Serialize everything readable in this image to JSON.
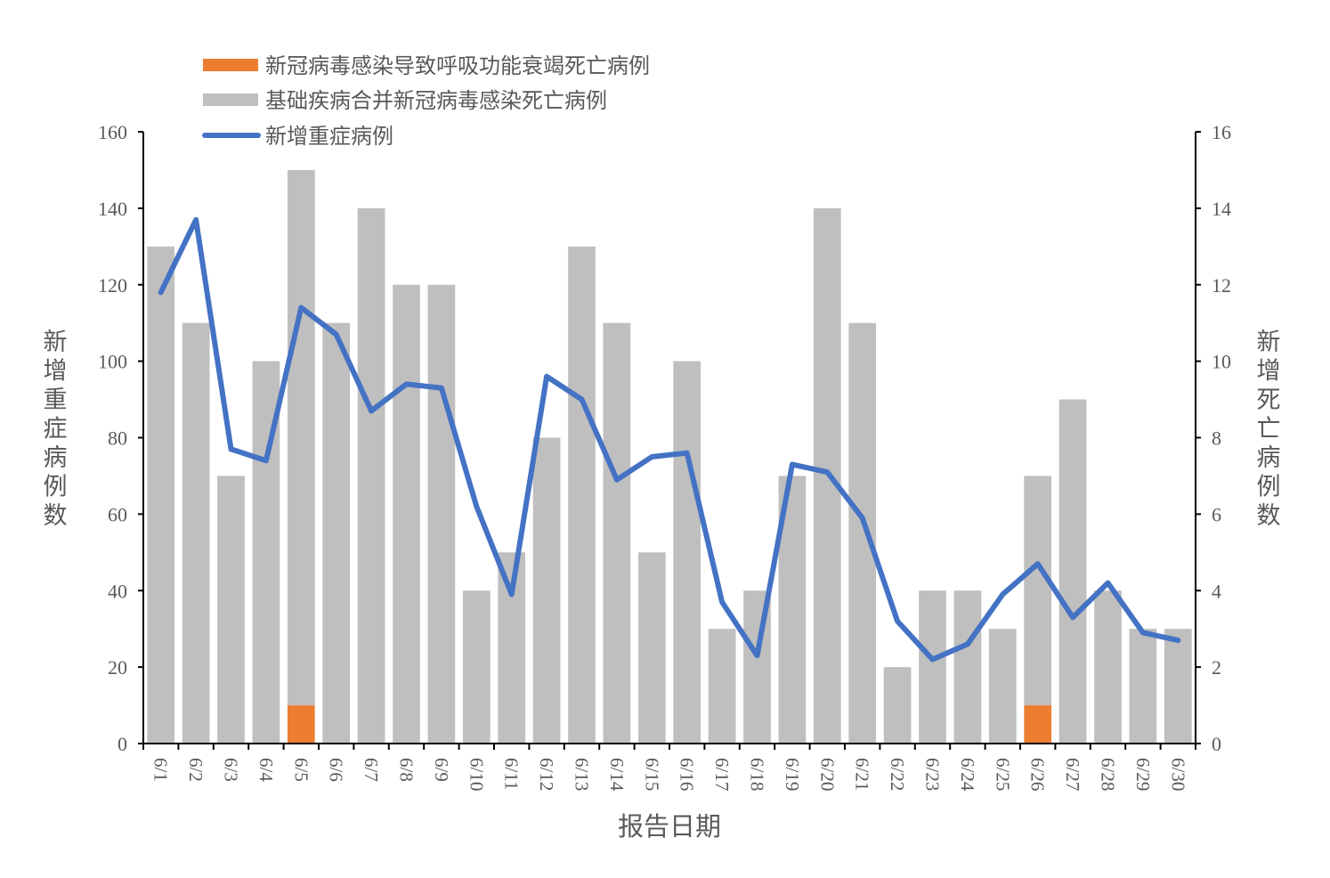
{
  "chart_data": {
    "type": "bar",
    "title": "",
    "xlabel": "报告日期",
    "ylabel": "新增重症病例数",
    "y2label": "新增死亡病例数",
    "ylim": [
      0,
      160
    ],
    "y2lim": [
      0,
      16
    ],
    "yticks": [
      0,
      20,
      40,
      60,
      80,
      100,
      120,
      140,
      160
    ],
    "y2ticks": [
      0,
      2,
      4,
      6,
      8,
      10,
      12,
      14,
      16
    ],
    "grid": false,
    "legend_position": "top-left",
    "categories": [
      "6/1",
      "6/2",
      "6/3",
      "6/4",
      "6/5",
      "6/6",
      "6/7",
      "6/8",
      "6/9",
      "6/10",
      "6/11",
      "6/12",
      "6/13",
      "6/14",
      "6/15",
      "6/16",
      "6/17",
      "6/18",
      "6/19",
      "6/20",
      "6/21",
      "6/22",
      "6/23",
      "6/24",
      "6/25",
      "6/26",
      "6/27",
      "6/28",
      "6/29",
      "6/30"
    ],
    "series": [
      {
        "name": "新冠病毒感染导致呼吸功能衰竭死亡病例",
        "type": "stacked-bar",
        "axis": "right",
        "color": "#ED7D31",
        "values": [
          0,
          0,
          0,
          0,
          1,
          0,
          0,
          0,
          0,
          0,
          0,
          0,
          0,
          0,
          0,
          0,
          0,
          0,
          0,
          0,
          0,
          0,
          0,
          0,
          0,
          1,
          0,
          0,
          0,
          0
        ]
      },
      {
        "name": "基础疾病合并新冠病毒感染死亡病例",
        "type": "stacked-bar",
        "axis": "right",
        "color": "#BFBFBF",
        "values": [
          13,
          11,
          7,
          10,
          14,
          11,
          14,
          12,
          12,
          4,
          5,
          8,
          13,
          11,
          5,
          10,
          3,
          4,
          7,
          14,
          11,
          2,
          4,
          4,
          3,
          6,
          9,
          4,
          3,
          3
        ]
      },
      {
        "name": "新增重症病例",
        "type": "line",
        "axis": "left",
        "color": "#4472C4",
        "values": [
          118,
          137,
          77,
          74,
          114,
          107,
          87,
          94,
          93,
          62,
          39,
          96,
          90,
          69,
          75,
          76,
          37,
          23,
          73,
          71,
          59,
          32,
          22,
          26,
          39,
          47,
          33,
          42,
          29,
          27
        ]
      }
    ]
  }
}
